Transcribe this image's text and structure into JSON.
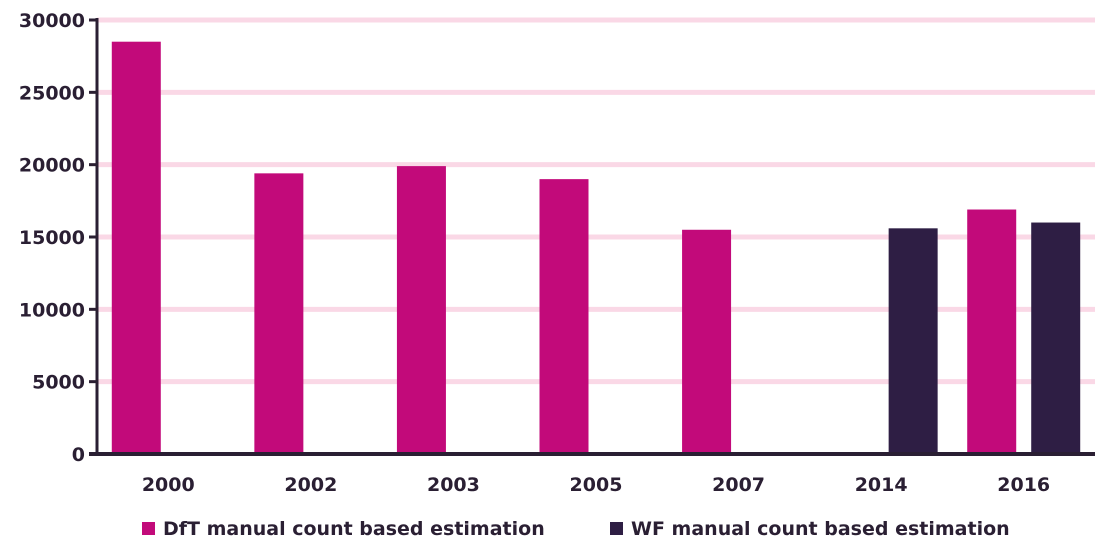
{
  "chart_data": {
    "type": "bar",
    "title": "",
    "xlabel": "",
    "ylabel": "",
    "categories": [
      "2000",
      "2002",
      "2003",
      "2005",
      "2007",
      "2014",
      "2016"
    ],
    "series": [
      {
        "name": "DfT manual count based estimation",
        "color": "#c20a7a",
        "values": [
          28500,
          19400,
          19900,
          19000,
          15500,
          null,
          16900
        ]
      },
      {
        "name": "WF manual count based estimation",
        "color": "#2e1e44",
        "values": [
          null,
          null,
          null,
          null,
          null,
          15600,
          16000
        ]
      }
    ],
    "ylim": [
      0,
      30000
    ],
    "yticks": [
      0,
      5000,
      10000,
      15000,
      20000,
      25000,
      30000
    ],
    "grid": true,
    "grid_color": "#fad8e6",
    "axis_color": "#2a1f33",
    "legend_position": "bottom"
  }
}
